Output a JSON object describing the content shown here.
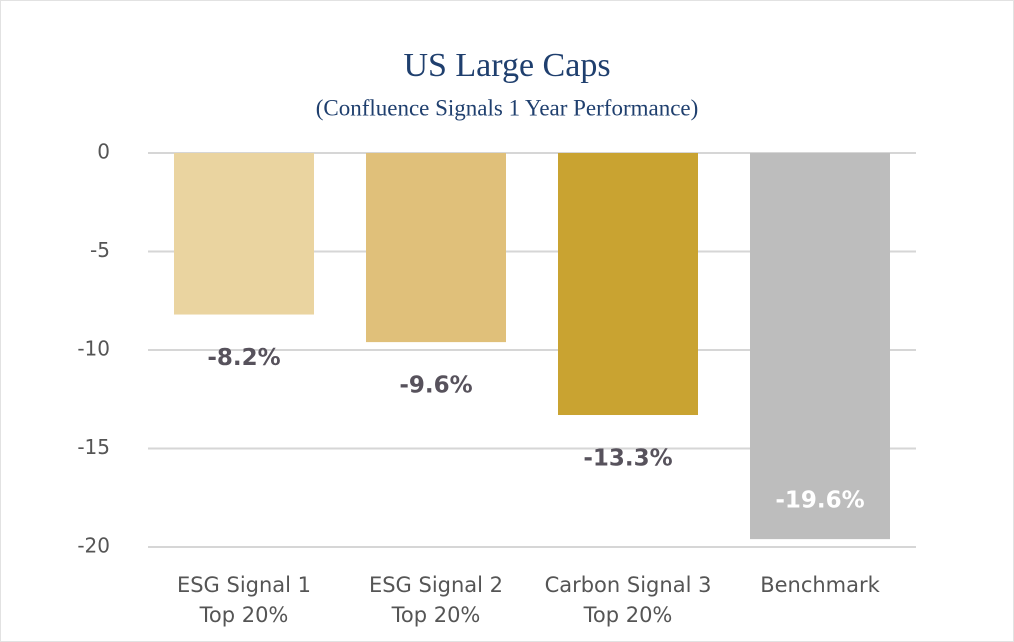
{
  "chart_data": {
    "type": "bar",
    "title": "US Large Caps",
    "subtitle": "(Confluence Signals 1 Year Performance)",
    "categories": [
      [
        "ESG Signal 1",
        "Top 20%"
      ],
      [
        "ESG Signal 2",
        "Top 20%"
      ],
      [
        "Carbon Signal 3",
        "Top 20%"
      ],
      [
        "Benchmark"
      ]
    ],
    "values": [
      -8.2,
      -9.6,
      -13.3,
      -19.6
    ],
    "value_labels": [
      "-8.2%",
      "-9.6%",
      "-13.3%",
      "-19.6%"
    ],
    "colors": [
      "#ead4a0",
      "#e0c07a",
      "#c9a331",
      "#bdbdbd"
    ],
    "ylim": [
      -20,
      0
    ],
    "yticks": [
      0,
      -5,
      -10,
      -15,
      -20
    ],
    "grid": true
  }
}
